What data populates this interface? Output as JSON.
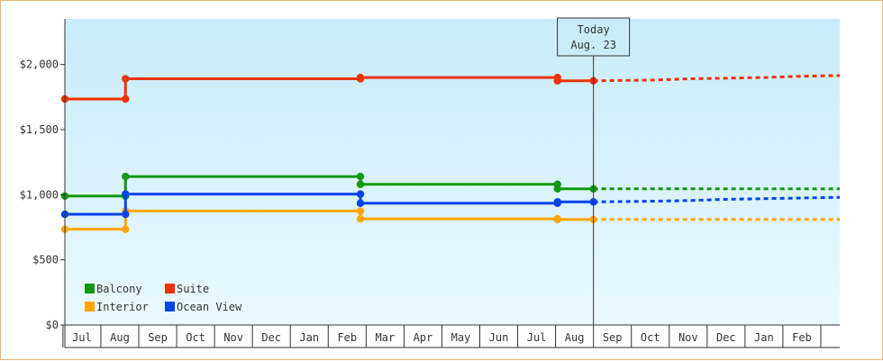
{
  "chart_data": {
    "type": "line",
    "step": true,
    "today_label": {
      "line1": "Today",
      "line2": "Aug. 23"
    },
    "today_index": 13.5,
    "months": [
      "Jul",
      "Aug",
      "Sep",
      "Oct",
      "Nov",
      "Dec",
      "Jan",
      "Feb",
      "Mar",
      "Apr",
      "May",
      "Jun",
      "Jul",
      "Aug",
      "Sep",
      "Oct",
      "Nov",
      "Dec",
      "Jan",
      "Feb"
    ],
    "y_ticks": [
      {
        "v": 0,
        "label": "$0"
      },
      {
        "v": 500,
        "label": "$500"
      },
      {
        "v": 1000,
        "label": "$1,000"
      },
      {
        "v": 1500,
        "label": "$1,500"
      },
      {
        "v": 2000,
        "label": "$2,000"
      }
    ],
    "ylim": [
      0,
      2350
    ],
    "xlim": [
      -0.45,
      20.0
    ],
    "grid": false,
    "legend_position": "bottom-left",
    "background": {
      "top": "#c8ecfa",
      "bottom": "#eaf8fe"
    },
    "series": [
      {
        "name": "Balcony",
        "color": "#119911",
        "points": [
          [
            -0.45,
            990
          ],
          [
            1.15,
            990
          ],
          [
            1.15,
            1140
          ],
          [
            7.35,
            1140
          ],
          [
            7.35,
            1080
          ],
          [
            12.55,
            1080
          ],
          [
            12.55,
            1045
          ],
          [
            13.5,
            1045
          ]
        ],
        "markers": [
          [
            -0.45,
            990
          ],
          [
            1.15,
            990
          ],
          [
            1.15,
            1140
          ],
          [
            7.35,
            1140
          ],
          [
            7.35,
            1080
          ],
          [
            12.55,
            1080
          ],
          [
            12.55,
            1045
          ],
          [
            13.5,
            1045
          ]
        ],
        "forecast": [
          [
            13.5,
            1045
          ],
          [
            20.0,
            1045
          ]
        ]
      },
      {
        "name": "Suite",
        "color": "#ee3300",
        "points": [
          [
            -0.45,
            1735
          ],
          [
            1.15,
            1735
          ],
          [
            1.15,
            1890
          ],
          [
            7.35,
            1890
          ],
          [
            7.35,
            1900
          ],
          [
            12.55,
            1900
          ],
          [
            12.55,
            1875
          ],
          [
            13.5,
            1875
          ]
        ],
        "markers": [
          [
            -0.45,
            1735
          ],
          [
            1.15,
            1735
          ],
          [
            1.15,
            1890
          ],
          [
            7.35,
            1890
          ],
          [
            7.35,
            1900
          ],
          [
            12.55,
            1900
          ],
          [
            12.55,
            1875
          ],
          [
            13.5,
            1875
          ]
        ],
        "forecast": [
          [
            13.5,
            1875
          ],
          [
            15.0,
            1880
          ],
          [
            16.0,
            1890
          ],
          [
            17.0,
            1895
          ],
          [
            18.0,
            1900
          ],
          [
            19.0,
            1910
          ],
          [
            20.0,
            1915
          ]
        ]
      },
      {
        "name": "Interior",
        "color": "#ffa500",
        "points": [
          [
            -0.45,
            735
          ],
          [
            1.15,
            735
          ],
          [
            1.15,
            875
          ],
          [
            7.35,
            875
          ],
          [
            7.35,
            815
          ],
          [
            12.55,
            815
          ],
          [
            12.55,
            810
          ],
          [
            13.5,
            810
          ]
        ],
        "markers": [
          [
            -0.45,
            735
          ],
          [
            1.15,
            735
          ],
          [
            1.15,
            875
          ],
          [
            7.35,
            875
          ],
          [
            7.35,
            815
          ],
          [
            12.55,
            815
          ],
          [
            12.55,
            810
          ],
          [
            13.5,
            810
          ]
        ],
        "forecast": [
          [
            13.5,
            810
          ],
          [
            20.0,
            810
          ]
        ]
      },
      {
        "name": "Ocean View",
        "color": "#0044ee",
        "points": [
          [
            -0.45,
            850
          ],
          [
            1.15,
            850
          ],
          [
            1.15,
            1005
          ],
          [
            7.35,
            1005
          ],
          [
            7.35,
            935
          ],
          [
            12.55,
            935
          ],
          [
            12.55,
            945
          ],
          [
            13.5,
            945
          ]
        ],
        "markers": [
          [
            -0.45,
            850
          ],
          [
            1.15,
            850
          ],
          [
            1.15,
            1005
          ],
          [
            7.35,
            1005
          ],
          [
            7.35,
            935
          ],
          [
            12.55,
            935
          ],
          [
            12.55,
            945
          ],
          [
            13.5,
            945
          ]
        ],
        "forecast": [
          [
            13.5,
            945
          ],
          [
            15.0,
            950
          ],
          [
            16.0,
            955
          ],
          [
            17.0,
            965
          ],
          [
            18.0,
            970
          ],
          [
            19.0,
            975
          ],
          [
            20.0,
            980
          ]
        ]
      }
    ]
  }
}
